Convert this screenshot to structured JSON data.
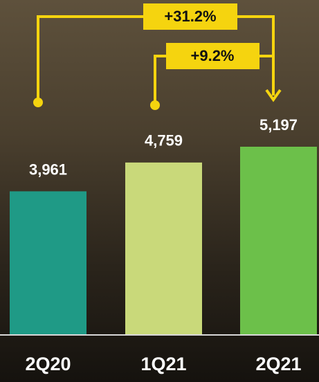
{
  "chart_data": {
    "type": "bar",
    "categories": [
      "2Q20",
      "1Q21",
      "2Q21"
    ],
    "values": [
      3961,
      4759,
      5197
    ],
    "value_labels": [
      "3,961",
      "4,759",
      "5,197"
    ],
    "colors": [
      "#1f9a86",
      "#c9d97a",
      "#6cc04a"
    ],
    "annotations": [
      "+31.2%",
      "+9.2%"
    ]
  }
}
